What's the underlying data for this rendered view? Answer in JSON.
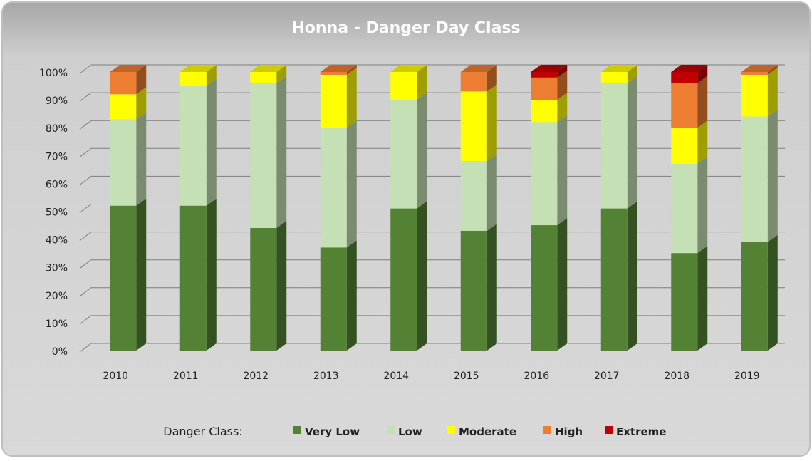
{
  "chart_data": {
    "type": "bar",
    "stacked": true,
    "title": "Honna - Danger Day Class",
    "categories": [
      "2010",
      "2011",
      "2012",
      "2013",
      "2014",
      "2015",
      "2016",
      "2017",
      "2018",
      "2019"
    ],
    "series": [
      {
        "name": "Very Low",
        "color": "#548235",
        "values": [
          52,
          52,
          44,
          37,
          51,
          43,
          45,
          51,
          35,
          39
        ]
      },
      {
        "name": "Low",
        "color": "#c5e0b4",
        "values": [
          31,
          43,
          52,
          43,
          39,
          25,
          37,
          45,
          32,
          45
        ]
      },
      {
        "name": "Moderate",
        "color": "#ffff00",
        "values": [
          9,
          5,
          4,
          19,
          10,
          25,
          8,
          4,
          13,
          15
        ]
      },
      {
        "name": "High",
        "color": "#ed7d31",
        "values": [
          8,
          0,
          0,
          1,
          0,
          7,
          8,
          0,
          16,
          1
        ]
      },
      {
        "name": "Extreme",
        "color": "#c00000",
        "values": [
          0,
          0,
          0,
          0,
          0,
          0,
          2,
          0,
          4,
          0
        ]
      }
    ],
    "legend_title": "Danger Class:",
    "ylim": [
      0,
      100
    ],
    "yticks": [
      {
        "value": 0,
        "label": "0%"
      },
      {
        "value": 10,
        "label": "10%"
      },
      {
        "value": 20,
        "label": "20%"
      },
      {
        "value": 30,
        "label": "30%"
      },
      {
        "value": 40,
        "label": "40%"
      },
      {
        "value": 50,
        "label": "50%"
      },
      {
        "value": 60,
        "label": "60%"
      },
      {
        "value": 70,
        "label": "70%"
      },
      {
        "value": 80,
        "label": "80%"
      },
      {
        "value": 90,
        "label": "90%"
      },
      {
        "value": 100,
        "label": "100%"
      }
    ],
    "grid": true,
    "legend": "bottom"
  }
}
